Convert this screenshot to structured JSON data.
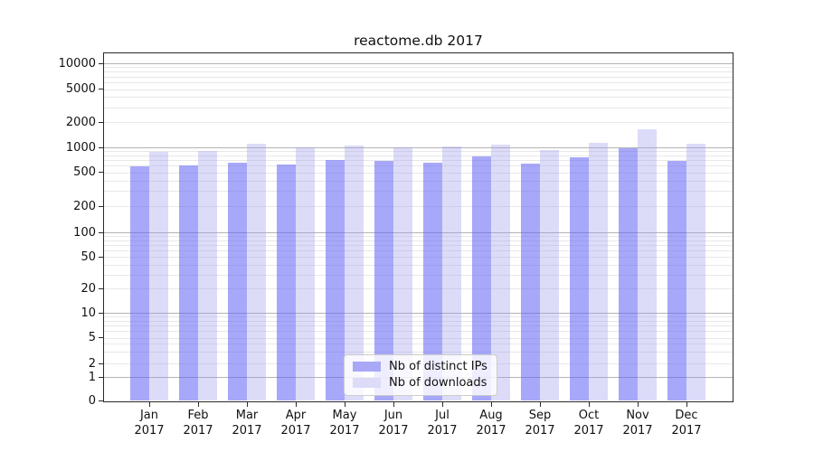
{
  "chart_data": {
    "type": "bar",
    "title": "reactome.db 2017",
    "categories": [
      "Jan",
      "Feb",
      "Mar",
      "Apr",
      "May",
      "Jun",
      "Jul",
      "Aug",
      "Sep",
      "Oct",
      "Nov",
      "Dec"
    ],
    "x_year_label": "2017",
    "series": [
      {
        "name": "Nb of distinct IPs",
        "color": "#a8a8f7",
        "fill_rgba": "rgba(97,97,245,0.55)",
        "values": [
          590,
          610,
          655,
          620,
          700,
          695,
          650,
          780,
          645,
          760,
          970,
          695
        ]
      },
      {
        "name": "Nb of downloads",
        "color": "#dcdcf8",
        "fill_rgba": "rgba(155,155,235,0.35)",
        "values": [
          890,
          915,
          1100,
          1010,
          1055,
          1015,
          1020,
          1080,
          930,
          1145,
          1650,
          1110
        ]
      }
    ],
    "yscale": "symlog",
    "ytick_values": [
      0,
      1,
      2,
      5,
      10,
      20,
      50,
      100,
      200,
      500,
      1000,
      2000,
      5000,
      10000
    ],
    "ytick_labels": [
      "0",
      "1",
      "2",
      "5",
      "10",
      "20",
      "50",
      "100",
      "200",
      "500",
      "1000",
      "2000",
      "5000",
      "10000"
    ],
    "ylim": [
      0,
      14000
    ],
    "grid": "both",
    "grid_major_color": "#b4b4b4",
    "grid_minor_color": "#e8e8e8",
    "legend": {
      "position": "lower center",
      "entries": [
        "Nb of distinct IPs",
        "Nb of downloads"
      ]
    }
  }
}
